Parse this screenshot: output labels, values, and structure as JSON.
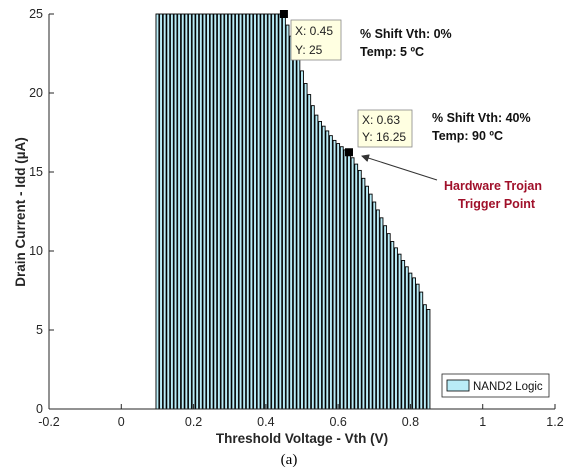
{
  "chart_data": {
    "type": "bar",
    "xlabel": "Threshold Voltage - Vth (V)",
    "ylabel": "Drain Current - Idd (µA)",
    "xlim": [
      -0.2,
      1.2
    ],
    "ylim": [
      0,
      25
    ],
    "xticks": [
      -0.2,
      0,
      0.2,
      0.4,
      0.6,
      0.8,
      1,
      1.2
    ],
    "xtick_labels": [
      "-0.2",
      "0",
      "0.2",
      "0.4",
      "0.6",
      "0.8",
      "1",
      "1.2"
    ],
    "yticks": [
      0,
      5,
      10,
      15,
      20,
      25
    ],
    "ytick_labels": [
      "0",
      "5",
      "10",
      "15",
      "20",
      "25"
    ],
    "grid": false,
    "legend_position": "bottom-right",
    "bar_fill": "#b9ecf7",
    "bar_edge": "#000000",
    "series": [
      {
        "name": "NAND2 Logic",
        "x": [
          0.1,
          0.11,
          0.12,
          0.13,
          0.14,
          0.15,
          0.16,
          0.17,
          0.18,
          0.19,
          0.2,
          0.21,
          0.22,
          0.23,
          0.24,
          0.25,
          0.26,
          0.27,
          0.28,
          0.29,
          0.3,
          0.31,
          0.32,
          0.33,
          0.34,
          0.35,
          0.36,
          0.37,
          0.38,
          0.39,
          0.4,
          0.41,
          0.42,
          0.43,
          0.44,
          0.45,
          0.46,
          0.47,
          0.48,
          0.49,
          0.5,
          0.51,
          0.52,
          0.53,
          0.54,
          0.55,
          0.56,
          0.57,
          0.58,
          0.59,
          0.6,
          0.61,
          0.62,
          0.63,
          0.64,
          0.65,
          0.66,
          0.67,
          0.68,
          0.69,
          0.7,
          0.71,
          0.72,
          0.73,
          0.74,
          0.75,
          0.76,
          0.77,
          0.78,
          0.79,
          0.8,
          0.81,
          0.82,
          0.83,
          0.84,
          0.85
        ],
        "values": [
          25,
          25,
          25,
          25,
          25,
          25,
          25,
          25,
          25,
          25,
          25,
          25,
          25,
          25,
          25,
          25,
          25,
          25,
          25,
          25,
          25,
          25,
          25,
          25,
          25,
          25,
          25,
          25,
          25,
          25,
          25,
          25,
          25,
          25,
          25,
          25,
          24.3,
          23.6,
          22.9,
          22.2,
          21.4,
          20.6,
          19.9,
          19.2,
          18.6,
          18.2,
          17.9,
          17.6,
          17.3,
          17.0,
          16.8,
          16.6,
          16.4,
          16.25,
          15.9,
          15.5,
          15.1,
          14.6,
          14.1,
          13.6,
          13.1,
          12.6,
          12.1,
          11.6,
          11.1,
          10.6,
          10.2,
          9.8,
          9.4,
          9.0,
          8.6,
          8.3,
          7.9,
          7.4,
          6.6,
          6.3
        ]
      }
    ],
    "datatips": [
      {
        "x": 0.45,
        "y": 25,
        "x_label": "X: 0.45",
        "y_label": "Y: 25"
      },
      {
        "x": 0.63,
        "y": 16.25,
        "x_label": "X: 0.63",
        "y_label": "Y: 16.25"
      }
    ],
    "annotations": {
      "a1_shift": "% Shift Vth:  0%",
      "a1_temp": "Temp:  5 ºC",
      "a2_shift": "% Shift Vth:  40%",
      "a2_temp": "Temp:  90 ºC",
      "trojan_line1": "Hardware Trojan",
      "trojan_line2": "Trigger Point"
    },
    "caption": "(a)"
  }
}
